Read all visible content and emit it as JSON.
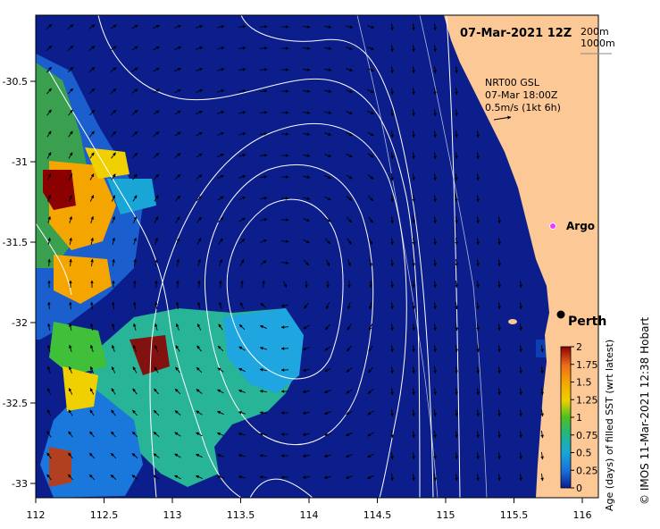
{
  "header": {
    "date_label": "07-Mar-2021 12Z",
    "isobath_shallow": "200m",
    "isobath_deep": "1000m"
  },
  "current_legend": {
    "line1": "NRT00 GSL",
    "line2": "07-Mar 18:00Z",
    "line3": "0.5m/s (1kt 6h)"
  },
  "places": [
    {
      "name": "Argo",
      "lon": 115.88,
      "lat": -31.45
    },
    {
      "name": "Perth",
      "lon": 115.86,
      "lat": -31.95
    }
  ],
  "axes": {
    "lon_ticks": [
      "112",
      "112.5",
      "113",
      "113.5",
      "114",
      "114.5",
      "115",
      "115.5",
      "116"
    ],
    "lat_ticks": [
      "-30.5",
      "-31",
      "-31.5",
      "-32",
      "-32.5",
      "-33"
    ]
  },
  "colorbar": {
    "title": "Age (days) of filled SST (wrt latest)",
    "ticks": [
      "2",
      "1.75",
      "1.5",
      "1.25",
      "1",
      "0.75",
      "0.5",
      "0.25",
      "0"
    ],
    "colors": [
      "#8b0000",
      "#c0392b",
      "#ee6a1c",
      "#f5a500",
      "#f0d000",
      "#4cc020",
      "#22b48c",
      "#19a6d6",
      "#1a6fdc",
      "#0a1e8c"
    ]
  },
  "credit": "© IMOS 11-Mar-2021 12:38 Hobart",
  "colors": {
    "ocean": "#0c1e8c",
    "land": "#fcc896"
  }
}
